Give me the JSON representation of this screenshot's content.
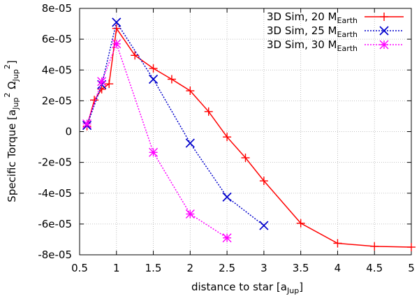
{
  "chart_data": {
    "type": "line",
    "title": "",
    "xlabel": {
      "main": "distance to star [a",
      "sub": "Jup",
      "close": "]"
    },
    "ylabel": {
      "main": "Specific Torque [a",
      "sub1": "Jup",
      "sup1": "2",
      "omega": " Ω",
      "sub2": "Jup",
      "sup2": "2",
      "close": "]"
    },
    "xlim": [
      0.5,
      5
    ],
    "ylim": [
      -8e-05,
      8e-05
    ],
    "x_ticks": [
      0.5,
      1,
      1.5,
      2,
      2.5,
      3,
      3.5,
      4,
      4.5,
      5
    ],
    "x_tick_labels": [
      "0.5",
      "1",
      "1.5",
      "2",
      "2.5",
      "3",
      "3.5",
      "4",
      "4.5",
      "5"
    ],
    "y_ticks": [
      8e-05,
      6e-05,
      4e-05,
      2e-05,
      0,
      -2e-05,
      -4e-05,
      -6e-05,
      -8e-05
    ],
    "y_tick_labels": [
      "8e-05",
      "6e-05",
      "4e-05",
      "2e-05",
      "0",
      "-2e-05",
      "-4e-05",
      "-6e-05",
      "-8e-05"
    ],
    "grid": true,
    "legend_position": "top-right",
    "series": [
      {
        "name": "3D Sim, 20 M",
        "name_sub": "Earth",
        "color": "#ff0000",
        "line_style": "solid",
        "marker": "plus",
        "x": [
          0.6,
          0.7,
          0.8,
          0.9,
          1.0,
          1.25,
          1.5,
          1.75,
          2.0,
          2.25,
          2.5,
          2.75,
          3.0,
          3.5,
          4.0,
          4.5,
          5.0
        ],
        "y": [
          3.5e-06,
          2.05e-05,
          2.75e-05,
          3.1e-05,
          6.7e-05,
          4.95e-05,
          4.1e-05,
          3.4e-05,
          2.65e-05,
          1.3e-05,
          -3.5e-06,
          -1.7e-05,
          -3.2e-05,
          -5.95e-05,
          -7.25e-05,
          -7.45e-05,
          -7.5e-05
        ]
      },
      {
        "name": "3D Sim, 25 M",
        "name_sub": "Earth",
        "color": "#0000cc",
        "line_style": "dotted",
        "marker": "cross",
        "x": [
          0.6,
          0.8,
          1.0,
          1.5,
          2.0,
          2.5,
          3.0
        ],
        "y": [
          4e-06,
          3.05e-05,
          7.1e-05,
          3.4e-05,
          -7.5e-06,
          -4.25e-05,
          -6.1e-05
        ]
      },
      {
        "name": "3D Sim, 30 M",
        "name_sub": "Earth",
        "color": "#ff00ff",
        "line_style": "dotted",
        "marker": "asterisk",
        "x": [
          0.6,
          0.8,
          1.0,
          1.5,
          2.0,
          2.5
        ],
        "y": [
          5e-06,
          3.25e-05,
          5.7e-05,
          -1.35e-05,
          -5.35e-05,
          -6.9e-05
        ]
      }
    ]
  }
}
